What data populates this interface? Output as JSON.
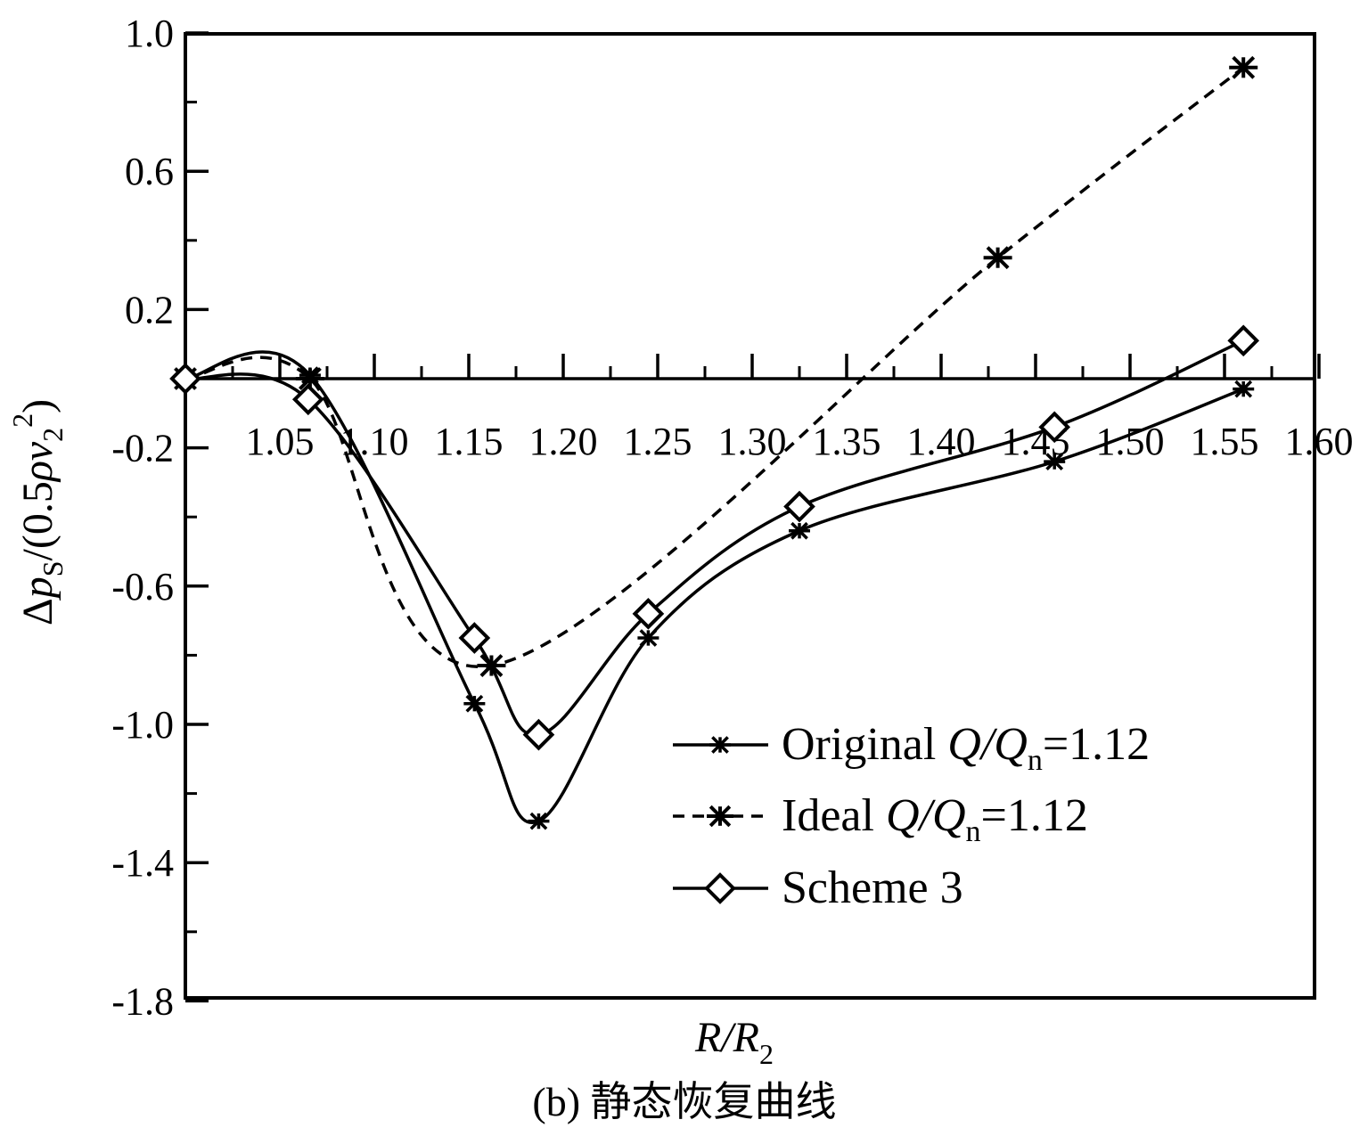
{
  "chart_data": {
    "type": "line",
    "xlabel": {
      "main": "R/R",
      "sub": "2"
    },
    "ylabel": {
      "pre": "Δ",
      "var": "p",
      "sub": "S",
      "mid": "/(0.5",
      "rho": "ρ",
      "v": "v",
      "vsub": "2",
      "sup": "2",
      "close": ")"
    },
    "caption": "(b) 静态恢复曲线",
    "xlim": [
      1.0,
      1.6
    ],
    "ylim": [
      -1.8,
      1.0
    ],
    "x_ticks": [
      "1.05",
      "1.10",
      "1.15",
      "1.20",
      "1.25",
      "1.30",
      "1.35",
      "1.40",
      "1.45",
      "1.50",
      "1.55",
      "1.60"
    ],
    "y_ticks": [
      "1.0",
      "0.6",
      "0.2",
      "-0.2",
      "-0.6",
      "-1.0",
      "-1.4",
      "-1.8"
    ],
    "grid": false,
    "zero_line": true,
    "legend_position": "lower-right",
    "series": [
      {
        "name": "Original",
        "legend_suffix": {
          "q": "Q/Q",
          "qsub": "n",
          "value": "=1.12"
        },
        "marker": "asterisk",
        "dash": "solid",
        "x": [
          1.0,
          1.066,
          1.153,
          1.187,
          1.245,
          1.325,
          1.46,
          1.56
        ],
        "y": [
          0.0,
          0.01,
          -0.94,
          -1.28,
          -0.75,
          -0.44,
          -0.24,
          -0.03
        ]
      },
      {
        "name": "Ideal",
        "legend_suffix": {
          "q": "Q/Q",
          "qsub": "n",
          "value": "=1.12"
        },
        "marker": "asterisk",
        "dash": "dashed",
        "x": [
          1.0,
          1.066,
          1.162,
          1.43,
          1.56
        ],
        "y": [
          0.0,
          0.0,
          -0.83,
          0.35,
          0.9
        ]
      },
      {
        "name": "Scheme 3",
        "legend_suffix": null,
        "marker": "diamond",
        "dash": "solid",
        "x": [
          1.0,
          1.065,
          1.153,
          1.187,
          1.245,
          1.325,
          1.46,
          1.56
        ],
        "y": [
          0.0,
          -0.06,
          -0.75,
          -1.03,
          -0.68,
          -0.37,
          -0.14,
          0.11
        ]
      }
    ]
  }
}
